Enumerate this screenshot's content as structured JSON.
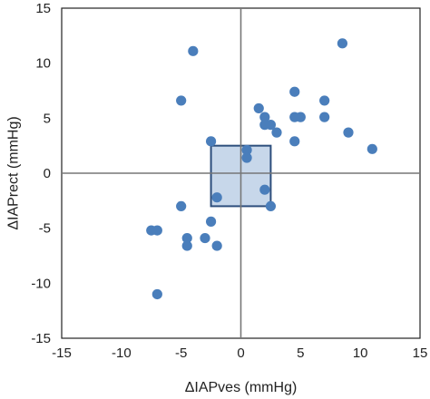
{
  "chart_data": {
    "type": "scatter",
    "title": "",
    "xlabel": "ΔIAPves (mmHg)",
    "ylabel": "ΔIAPrect (mmHg)",
    "xlim": [
      -15,
      15
    ],
    "ylim": [
      -15,
      15
    ],
    "xticks": [
      -15,
      -10,
      -5,
      0,
      5,
      10,
      15
    ],
    "yticks": [
      -15,
      -10,
      -5,
      0,
      5,
      10,
      15
    ],
    "grid": false,
    "zero_lines": true,
    "colors": {
      "point": "#4a7ebb",
      "box_fill": "#bdd0e6",
      "box_stroke": "#2d4e7c"
    },
    "agreement_box": {
      "x": [
        -2.5,
        2.5
      ],
      "y": [
        -3,
        2.5
      ]
    },
    "points": [
      {
        "x": -4,
        "y": 11.1
      },
      {
        "x": 8.5,
        "y": 11.8
      },
      {
        "x": -5,
        "y": 6.6
      },
      {
        "x": 4.5,
        "y": 7.4
      },
      {
        "x": 7,
        "y": 6.6
      },
      {
        "x": 1.5,
        "y": 5.9
      },
      {
        "x": 2,
        "y": 5.1
      },
      {
        "x": 4.5,
        "y": 5.1
      },
      {
        "x": 5,
        "y": 5.1
      },
      {
        "x": 7,
        "y": 5.1
      },
      {
        "x": 2,
        "y": 4.4
      },
      {
        "x": 2.5,
        "y": 4.4
      },
      {
        "x": 3,
        "y": 3.7
      },
      {
        "x": 9,
        "y": 3.7
      },
      {
        "x": -2.5,
        "y": 2.9
      },
      {
        "x": 4.5,
        "y": 2.9
      },
      {
        "x": 11,
        "y": 2.2
      },
      {
        "x": 0.5,
        "y": 2.1
      },
      {
        "x": 0.5,
        "y": 1.4
      },
      {
        "x": 2,
        "y": -1.5
      },
      {
        "x": -2,
        "y": -2.2
      },
      {
        "x": -5,
        "y": -3
      },
      {
        "x": 2.5,
        "y": -3
      },
      {
        "x": -2.5,
        "y": -4.4
      },
      {
        "x": -7.5,
        "y": -5.2
      },
      {
        "x": -7,
        "y": -5.2
      },
      {
        "x": -4.5,
        "y": -5.9
      },
      {
        "x": -3,
        "y": -5.9
      },
      {
        "x": -4.5,
        "y": -6.6
      },
      {
        "x": -2,
        "y": -6.6
      },
      {
        "x": -7,
        "y": -11
      }
    ]
  }
}
